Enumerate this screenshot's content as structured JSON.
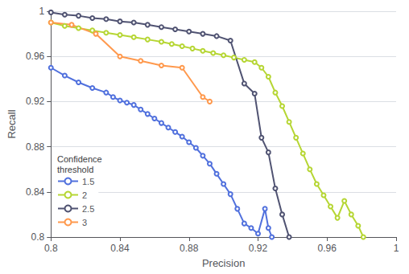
{
  "chart_data": {
    "type": "line",
    "xlabel": "Precision",
    "ylabel": "Recall",
    "legend_title": "Confidence\nthreshold",
    "legend": "lower left",
    "grid": "y",
    "xlim": [
      0.8,
      1.0
    ],
    "ylim": [
      0.8,
      1.0
    ],
    "xticks": [
      0.8,
      0.84,
      0.88,
      0.92,
      0.96,
      1
    ],
    "yticks": [
      0.8,
      0.84,
      0.88,
      0.92,
      0.96,
      1
    ],
    "series": [
      {
        "name": "1.5",
        "x": [
          0.8,
          0.808,
          0.816,
          0.824,
          0.832,
          0.836,
          0.84,
          0.844,
          0.848,
          0.852,
          0.856,
          0.86,
          0.864,
          0.868,
          0.872,
          0.876,
          0.88,
          0.884,
          0.888,
          0.892,
          0.896,
          0.9,
          0.904,
          0.908,
          0.912,
          0.916,
          0.92,
          0.924,
          0.926,
          0.928
        ],
        "values": [
          0.95,
          0.943,
          0.937,
          0.932,
          0.928,
          0.924,
          0.921,
          0.919,
          0.917,
          0.913,
          0.909,
          0.905,
          0.901,
          0.897,
          0.893,
          0.889,
          0.884,
          0.879,
          0.872,
          0.865,
          0.856,
          0.847,
          0.838,
          0.825,
          0.812,
          0.808,
          0.803,
          0.825,
          0.808,
          0.8
        ]
      },
      {
        "name": "2",
        "x": [
          0.8,
          0.808,
          0.816,
          0.824,
          0.832,
          0.84,
          0.848,
          0.856,
          0.864,
          0.87,
          0.876,
          0.882,
          0.888,
          0.894,
          0.9,
          0.906,
          0.912,
          0.918,
          0.922,
          0.926,
          0.93,
          0.934,
          0.938,
          0.942,
          0.946,
          0.95,
          0.954,
          0.958,
          0.962,
          0.966,
          0.97,
          0.974,
          0.978,
          0.981
        ],
        "values": [
          0.99,
          0.987,
          0.985,
          0.983,
          0.981,
          0.979,
          0.977,
          0.975,
          0.973,
          0.971,
          0.969,
          0.967,
          0.965,
          0.963,
          0.961,
          0.959,
          0.957,
          0.955,
          0.95,
          0.942,
          0.928,
          0.916,
          0.902,
          0.888,
          0.874,
          0.86,
          0.847,
          0.837,
          0.827,
          0.817,
          0.832,
          0.82,
          0.81,
          0.8
        ]
      },
      {
        "name": "2.5",
        "x": [
          0.8,
          0.808,
          0.816,
          0.824,
          0.832,
          0.84,
          0.848,
          0.856,
          0.864,
          0.872,
          0.88,
          0.888,
          0.896,
          0.904,
          0.912,
          0.918,
          0.922,
          0.926,
          0.93,
          0.934,
          0.938
        ],
        "values": [
          0.999,
          0.997,
          0.996,
          0.994,
          0.993,
          0.991,
          0.99,
          0.988,
          0.986,
          0.984,
          0.982,
          0.98,
          0.978,
          0.974,
          0.936,
          0.927,
          0.888,
          0.875,
          0.843,
          0.82,
          0.8
        ]
      },
      {
        "name": "3",
        "x": [
          0.8,
          0.812,
          0.826,
          0.84,
          0.852,
          0.864,
          0.876,
          0.888,
          0.892
        ],
        "values": [
          0.99,
          0.988,
          0.98,
          0.96,
          0.956,
          0.952,
          0.95,
          0.924,
          0.92
        ]
      }
    ]
  }
}
